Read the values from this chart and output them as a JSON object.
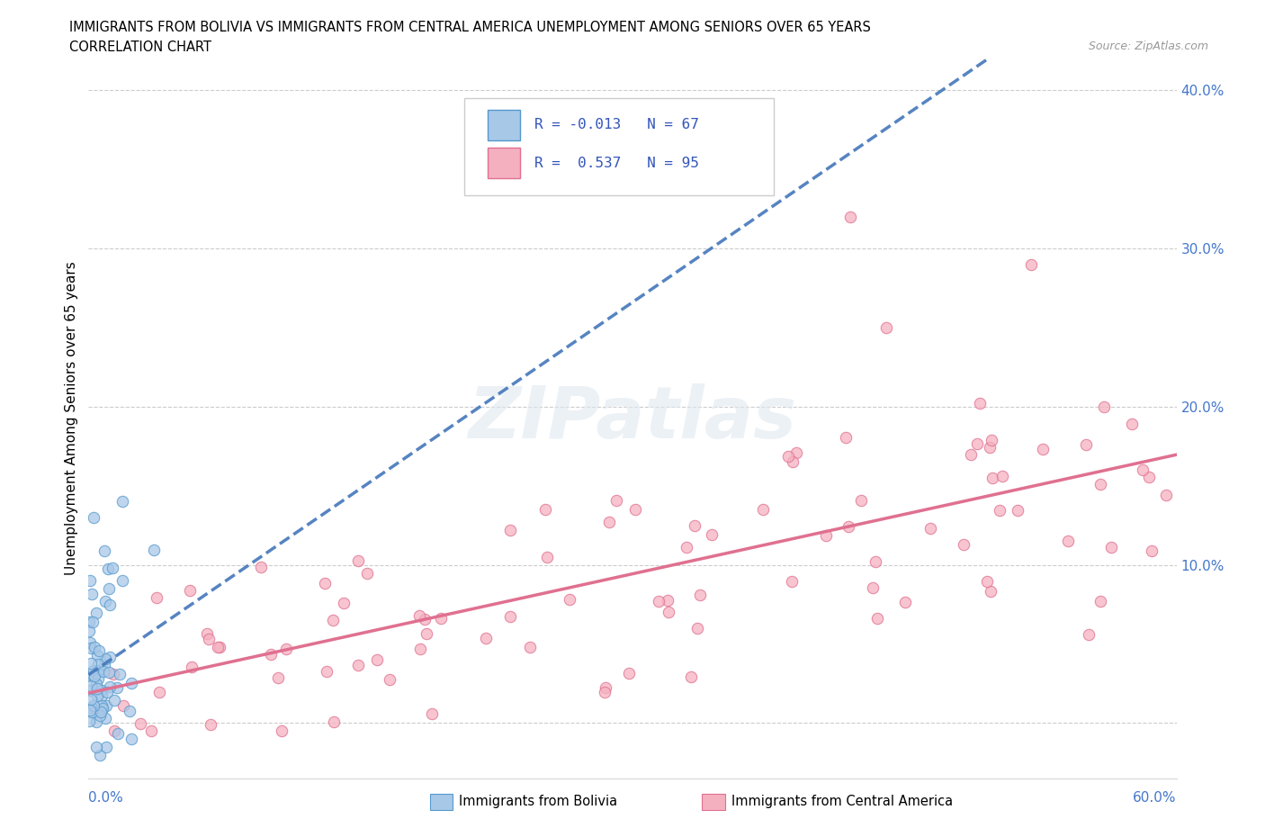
{
  "title_line1": "IMMIGRANTS FROM BOLIVIA VS IMMIGRANTS FROM CENTRAL AMERICA UNEMPLOYMENT AMONG SENIORS OVER 65 YEARS",
  "title_line2": "CORRELATION CHART",
  "source": "Source: ZipAtlas.com",
  "ylabel": "Unemployment Among Seniors over 65 years",
  "xlim": [
    0.0,
    0.6
  ],
  "ylim": [
    -0.035,
    0.42
  ],
  "bolivia_color": "#a8c8e8",
  "bolivia_edge": "#5599cc",
  "bolivia_line_color": "#4477bb",
  "central_america_color": "#f5b0c0",
  "central_america_edge": "#e07090",
  "central_line_color": "#e07090",
  "bolivia_R": -0.013,
  "bolivia_N": 67,
  "central_R": 0.537,
  "central_N": 95,
  "watermark": "ZIPatlas",
  "grid_color": "#cccccc",
  "background_color": "#ffffff",
  "legend_text_color": "#3355bb",
  "tick_color": "#4477cc"
}
